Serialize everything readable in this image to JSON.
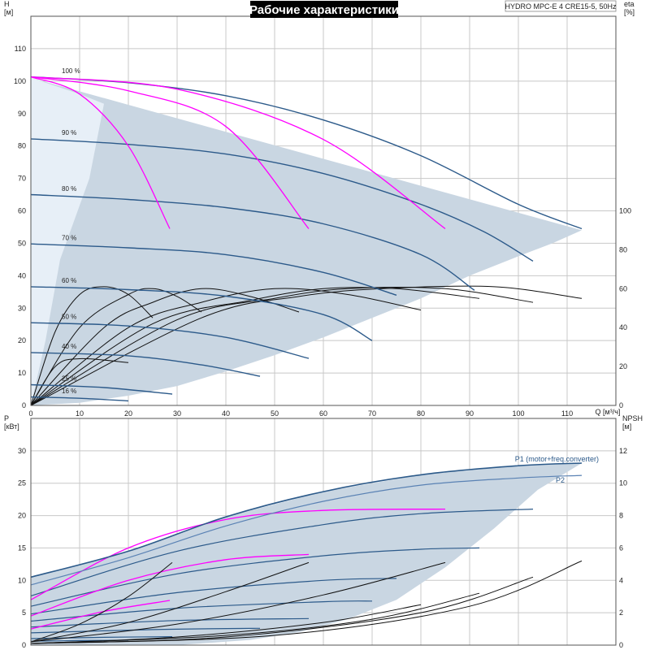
{
  "chart_data": [
    {
      "type": "line",
      "title": "Рабочие характеристики",
      "product": "HYDRO MPC-E 4 CRE15-5, 50Hz",
      "xlabel": "Q [м³/ч]",
      "ylabel": "H [м]",
      "y2label": "eta [%]",
      "xlim": [
        0,
        120
      ],
      "ylim": [
        0,
        120
      ],
      "y2lim": [
        0,
        200
      ],
      "xticks": [
        0,
        10,
        20,
        30,
        40,
        50,
        60,
        70,
        80,
        90,
        100,
        110
      ],
      "yticks": [
        0,
        10,
        20,
        30,
        40,
        50,
        60,
        70,
        80,
        90,
        100,
        110
      ],
      "y2ticks": [
        0,
        20,
        40,
        60,
        80,
        100
      ],
      "grid": true,
      "envelope": [
        [
          0,
          101
        ],
        [
          113,
          54
        ],
        [
          107,
          50
        ],
        [
          100,
          46
        ],
        [
          90,
          40
        ],
        [
          80,
          33
        ],
        [
          70,
          27
        ],
        [
          60,
          21
        ],
        [
          50,
          15.5
        ],
        [
          40,
          10.5
        ],
        [
          30,
          6
        ],
        [
          20,
          3
        ],
        [
          10,
          0.8
        ],
        [
          0,
          0
        ]
      ],
      "speed_curves": [
        {
          "label": "100 %",
          "points": [
            [
              0,
              101.3
            ],
            [
              20,
              99.5
            ],
            [
              40,
              95.5
            ],
            [
              60,
              88
            ],
            [
              80,
              77
            ],
            [
              100,
              62
            ],
            [
              113,
              54.5
            ]
          ]
        },
        {
          "label": "90 %",
          "points": [
            [
              0,
              82.2
            ],
            [
              20,
              80.5
            ],
            [
              40,
              77.5
            ],
            [
              60,
              71.5
            ],
            [
              80,
              62
            ],
            [
              93,
              53.5
            ],
            [
              103,
              44.5
            ]
          ]
        },
        {
          "label": "80 %",
          "points": [
            [
              0,
              65
            ],
            [
              20,
              63.5
            ],
            [
              40,
              61
            ],
            [
              60,
              56
            ],
            [
              80,
              46.5
            ],
            [
              91,
              35.5
            ]
          ]
        },
        {
          "label": "70 %",
          "points": [
            [
              0,
              49.8
            ],
            [
              20,
              48.6
            ],
            [
              40,
              46.5
            ],
            [
              60,
              41
            ],
            [
              75,
              34
            ]
          ]
        },
        {
          "label": "60 %",
          "points": [
            [
              0,
              36.6
            ],
            [
              20,
              35.7
            ],
            [
              40,
              33.7
            ],
            [
              60,
              28
            ],
            [
              70,
              20
            ]
          ]
        },
        {
          "label": "50 %",
          "points": [
            [
              0,
              25.5
            ],
            [
              20,
              24.5
            ],
            [
              40,
              21
            ],
            [
              57,
              14.5
            ]
          ]
        },
        {
          "label": "40 %",
          "points": [
            [
              0,
              16.3
            ],
            [
              20,
              15.3
            ],
            [
              35,
              12.5
            ],
            [
              47,
              9
            ]
          ]
        },
        {
          "label": "25 %",
          "points": [
            [
              0,
              6.4
            ],
            [
              15,
              5.5
            ],
            [
              29,
              3.5
            ]
          ]
        },
        {
          "label": "16 %",
          "points": [
            [
              0,
              2.6
            ],
            [
              10,
              2.2
            ],
            [
              20,
              1.4
            ]
          ]
        }
      ],
      "partial_curves": [
        {
          "points": [
            [
              0,
              101.3
            ],
            [
              10,
              96
            ],
            [
              20,
              80
            ],
            [
              28.5,
              54.5
            ]
          ]
        },
        {
          "points": [
            [
              0,
              101.3
            ],
            [
              20,
              97
            ],
            [
              40,
              86
            ],
            [
              57,
              54.5
            ]
          ]
        },
        {
          "points": [
            [
              0,
              101.3
            ],
            [
              30,
              97.5
            ],
            [
              60,
              82
            ],
            [
              85,
              54.5
            ]
          ]
        }
      ],
      "efficiency_curves": [
        {
          "points": [
            [
              0,
              0
            ],
            [
              5,
              38
            ],
            [
              10,
              57
            ],
            [
              15,
              61
            ],
            [
              20,
              57
            ],
            [
              25,
              45
            ]
          ]
        },
        {
          "points": [
            [
              0,
              0
            ],
            [
              10,
              40
            ],
            [
              20,
              57
            ],
            [
              25,
              60
            ],
            [
              30,
              56
            ],
            [
              35,
              48
            ]
          ]
        },
        {
          "points": [
            [
              0,
              0
            ],
            [
              15,
              40
            ],
            [
              25,
              53
            ],
            [
              35,
              60
            ],
            [
              45,
              56
            ],
            [
              55,
              48
            ]
          ]
        },
        {
          "points": [
            [
              0,
              0
            ],
            [
              20,
              40
            ],
            [
              35,
              53
            ],
            [
              50,
              60
            ],
            [
              65,
              57
            ],
            [
              80,
              49
            ]
          ]
        },
        {
          "points": [
            [
              0,
              0
            ],
            [
              25,
              42
            ],
            [
              45,
              54
            ],
            [
              60,
              60
            ],
            [
              75,
              60
            ],
            [
              92,
              55
            ]
          ]
        },
        {
          "points": [
            [
              0,
              0
            ],
            [
              30,
              44
            ],
            [
              50,
              55
            ],
            [
              65,
              60
            ],
            [
              85,
              60
            ],
            [
              103,
              53
            ]
          ]
        },
        {
          "points": [
            [
              0,
              0
            ],
            [
              35,
              45
            ],
            [
              55,
              56
            ],
            [
              72,
              60
            ],
            [
              95,
              61
            ],
            [
              113,
              55
            ]
          ]
        },
        {
          "points": [
            [
              0,
              0
            ],
            [
              5,
              20
            ],
            [
              10,
              24
            ],
            [
              20,
              22
            ]
          ]
        }
      ],
      "curve_colors": {
        "speed": "#2c5a8a",
        "partial": "#ff00ff",
        "efficiency": "#111111",
        "envelope": "#c9d6e2",
        "envelope_light": "#e7eff7"
      }
    },
    {
      "type": "line",
      "ylabel": "P [кВт]",
      "y2label": "NPSH [м]",
      "xlim": [
        0,
        120
      ],
      "ylim": [
        0,
        35
      ],
      "y2lim": [
        0,
        14
      ],
      "yticks": [
        0,
        5,
        10,
        15,
        20,
        25,
        30
      ],
      "y2ticks": [
        0,
        2,
        4,
        6,
        8,
        10,
        12
      ],
      "grid": true,
      "envelope": [
        [
          0,
          10.5
        ],
        [
          20,
          14.5
        ],
        [
          40,
          19.8
        ],
        [
          60,
          23.7
        ],
        [
          80,
          26.3
        ],
        [
          100,
          27.7
        ],
        [
          113,
          28.1
        ],
        [
          104,
          24
        ],
        [
          95,
          18
        ],
        [
          85,
          12
        ],
        [
          75,
          7
        ],
        [
          65,
          4
        ],
        [
          55,
          2
        ],
        [
          45,
          0.8
        ],
        [
          30,
          0
        ],
        [
          0,
          0
        ]
      ],
      "series": [
        {
          "name": "P1 (motor+freq.converter)",
          "points": [
            [
              0,
              10.5
            ],
            [
              20,
              14.5
            ],
            [
              40,
              19.8
            ],
            [
              60,
              23.7
            ],
            [
              80,
              26.3
            ],
            [
              100,
              27.7
            ],
            [
              113,
              28.1
            ]
          ]
        },
        {
          "name": "P2",
          "points": [
            [
              0,
              9.3
            ],
            [
              20,
              13.5
            ],
            [
              40,
              18.4
            ],
            [
              60,
              22.2
            ],
            [
              80,
              24.7
            ],
            [
              100,
              25.8
            ],
            [
              113,
              26.2
            ]
          ]
        }
      ],
      "speed_power_curves": [
        {
          "points": [
            [
              0,
              7.6
            ],
            [
              30,
              14.5
            ],
            [
              60,
              18.6
            ],
            [
              80,
              20.3
            ],
            [
              103,
              21
            ]
          ]
        },
        {
          "points": [
            [
              0,
              6
            ],
            [
              30,
              11
            ],
            [
              60,
              13.8
            ],
            [
              80,
              14.8
            ],
            [
              92,
              15
            ]
          ]
        },
        {
          "points": [
            [
              0,
              4.8
            ],
            [
              30,
              8.1
            ],
            [
              60,
              10
            ],
            [
              75,
              10.3
            ]
          ]
        },
        {
          "points": [
            [
              0,
              3.7
            ],
            [
              30,
              5.7
            ],
            [
              60,
              6.7
            ],
            [
              70,
              6.8
            ]
          ]
        },
        {
          "points": [
            [
              0,
              2.8
            ],
            [
              30,
              3.8
            ],
            [
              57,
              4.1
            ]
          ]
        },
        {
          "points": [
            [
              0,
              1.9
            ],
            [
              25,
              2.4
            ],
            [
              47,
              2.6
            ]
          ]
        },
        {
          "points": [
            [
              0,
              1.0
            ],
            [
              15,
              1.2
            ],
            [
              29,
              1.3
            ]
          ]
        },
        {
          "points": [
            [
              0,
              0.6
            ],
            [
              10,
              0.7
            ],
            [
              20,
              0.75
            ]
          ]
        }
      ],
      "partial_power_curves": [
        {
          "points": [
            [
              0,
              7
            ],
            [
              20,
              15
            ],
            [
              40,
              19.4
            ],
            [
              60,
              20.8
            ],
            [
              85,
              21
            ]
          ]
        },
        {
          "points": [
            [
              0,
              4.5
            ],
            [
              20,
              10
            ],
            [
              40,
              13.2
            ],
            [
              57,
              14
            ]
          ]
        },
        {
          "points": [
            [
              0,
              2.5
            ],
            [
              15,
              5.2
            ],
            [
              28.5,
              6.9
            ]
          ]
        }
      ],
      "npsh_curves": [
        {
          "points": [
            [
              0,
              0.2
            ],
            [
              10,
              1.3
            ],
            [
              20,
              3
            ],
            [
              29,
              5.1
            ]
          ]
        },
        {
          "points": [
            [
              0,
              0.2
            ],
            [
              20,
              1.4
            ],
            [
              40,
              3.3
            ],
            [
              57,
              5.1
            ]
          ]
        },
        {
          "points": [
            [
              0,
              0.2
            ],
            [
              30,
              1.3
            ],
            [
              60,
              3.1
            ],
            [
              85,
              5.1
            ]
          ]
        },
        {
          "points": [
            [
              0,
              0.1
            ],
            [
              30,
              0.5
            ],
            [
              60,
              1.4
            ],
            [
              80,
              2.5
            ]
          ]
        },
        {
          "points": [
            [
              0,
              0.1
            ],
            [
              40,
              0.6
            ],
            [
              70,
              1.6
            ],
            [
              92,
              3.2
            ]
          ]
        },
        {
          "points": [
            [
              0,
              0.1
            ],
            [
              40,
              0.5
            ],
            [
              80,
              2
            ],
            [
              103,
              4.2
            ]
          ]
        },
        {
          "points": [
            [
              0,
              0.1
            ],
            [
              50,
              0.6
            ],
            [
              90,
              2.4
            ],
            [
              113,
              5.2
            ]
          ]
        }
      ],
      "curve_colors": {
        "P1": "#2c5a8a",
        "P2": "#5a82b4",
        "speed": "#2c5a8a",
        "partial": "#ff00ff",
        "npsh": "#111111",
        "envelope": "#c9d6e2"
      }
    }
  ]
}
